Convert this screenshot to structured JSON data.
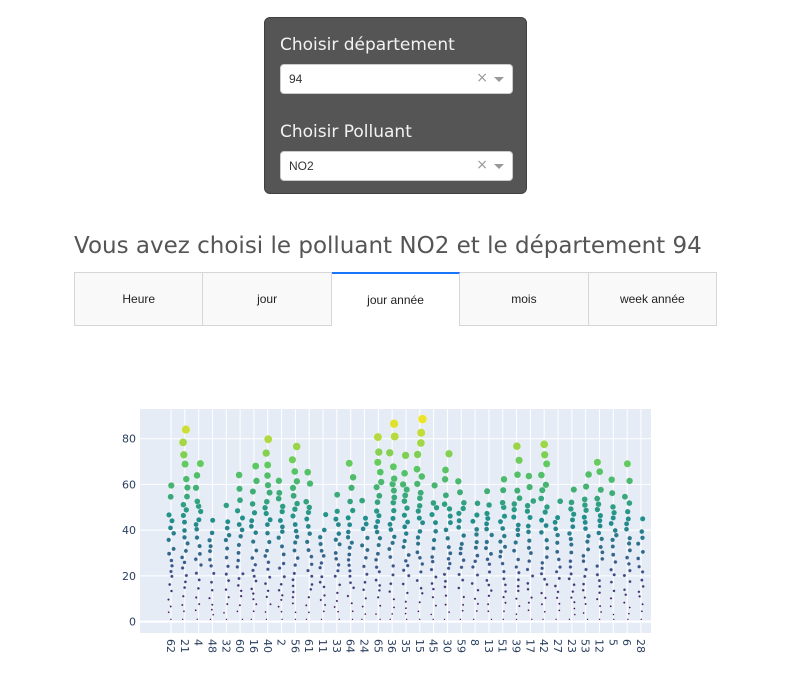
{
  "controls": {
    "department_label": "Choisir département",
    "department_value": "94",
    "pollutant_label": "Choisir Polluant",
    "pollutant_value": "NO2",
    "clear_glyph": "×"
  },
  "headline": "Vous avez choisi le polluant NO2 et le département 94",
  "tabs": [
    {
      "label": "Heure",
      "active": false
    },
    {
      "label": "jour",
      "active": false
    },
    {
      "label": "jour année",
      "active": true
    },
    {
      "label": "mois",
      "active": false
    },
    {
      "label": "week année",
      "active": false
    }
  ],
  "colors": {
    "plot_bg": "#e5ecf6",
    "active_tab": "#1975fa",
    "panel": "#555555"
  },
  "chart_data": {
    "type": "scatter",
    "title": "",
    "xlabel": "",
    "ylabel": "",
    "ylim": [
      -5,
      93
    ],
    "yticks": [
      0,
      20,
      40,
      60,
      80
    ],
    "grid": true,
    "colorscale": "viridis",
    "categories": [
      "62",
      "21",
      "4",
      "48",
      "32",
      "60",
      "16",
      "40",
      "2",
      "56",
      "61",
      "11",
      "33",
      "64",
      "24",
      "65",
      "36",
      "35",
      "15",
      "45",
      "30",
      "59",
      "8",
      "13",
      "51",
      "39",
      "17",
      "42",
      "27",
      "23",
      "53",
      "12",
      "5",
      "6",
      "28"
    ],
    "max_values": [
      62,
      86,
      71,
      48,
      56,
      65,
      71,
      80,
      66,
      81,
      72,
      50,
      58,
      71,
      55,
      87,
      89,
      76,
      91,
      62,
      76,
      68,
      55,
      60,
      68,
      77,
      66,
      82,
      58,
      63,
      66,
      74,
      66,
      70,
      47
    ],
    "typical_values": [
      45,
      60,
      52,
      38,
      42,
      48,
      50,
      58,
      55,
      60,
      52,
      40,
      45,
      52,
      45,
      60,
      62,
      58,
      65,
      50,
      55,
      50,
      45,
      48,
      50,
      55,
      52,
      58,
      45,
      50,
      52,
      55,
      50,
      52,
      38
    ]
  }
}
